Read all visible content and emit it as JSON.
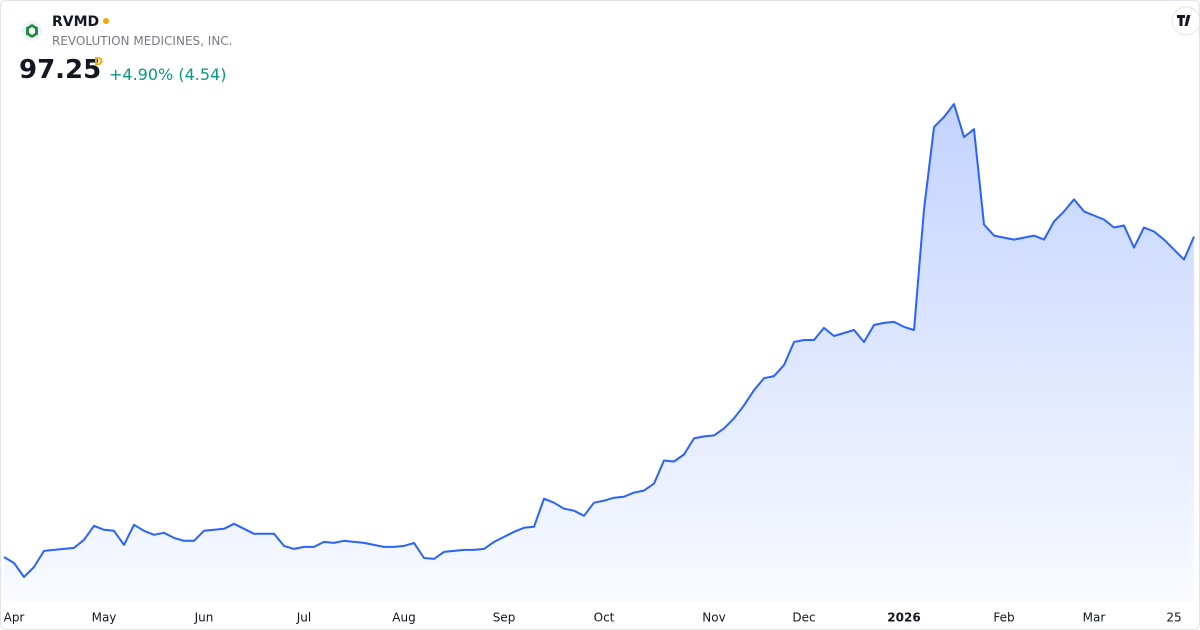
{
  "header": {
    "symbol": "RVMD",
    "name": "REVOLUTION MEDICINES, INC.",
    "price": "97.25",
    "resolution": "D",
    "change": "+4.90% (4.54)"
  },
  "chart_data": {
    "type": "area",
    "categories": [
      null,
      "Apr",
      null,
      null,
      null,
      null,
      null,
      null,
      null,
      null,
      "May",
      null,
      null,
      null,
      null,
      null,
      null,
      null,
      null,
      null,
      "Jun",
      null,
      null,
      null,
      null,
      null,
      null,
      null,
      null,
      null,
      "Jul",
      null,
      null,
      null,
      null,
      null,
      null,
      null,
      null,
      null,
      "Aug",
      null,
      null,
      null,
      null,
      null,
      null,
      null,
      null,
      null,
      "Sep",
      null,
      null,
      null,
      null,
      null,
      null,
      null,
      null,
      null,
      "Oct",
      null,
      null,
      null,
      null,
      null,
      null,
      null,
      null,
      null,
      null,
      "Nov",
      null,
      null,
      null,
      null,
      null,
      null,
      null,
      null,
      "Dec",
      null,
      null,
      null,
      null,
      null,
      null,
      null,
      null,
      null,
      "2026",
      null,
      null,
      null,
      null,
      null,
      null,
      null,
      null,
      null,
      "Feb",
      null,
      null,
      null,
      null,
      null,
      null,
      null,
      null,
      "Mar",
      null,
      null,
      null,
      null,
      null,
      null,
      null,
      "25",
      null,
      null
    ],
    "series": [
      {
        "color": "#2962ff",
        "values": [
          36.03,
          34.88,
          32.2,
          34.12,
          37.19,
          37.38,
          37.57,
          37.76,
          39.3,
          41.98,
          41.22,
          41.02,
          38.34,
          42.18,
          41.02,
          40.26,
          40.64,
          39.68,
          39.11,
          39.11,
          41.02,
          41.22,
          41.41,
          42.37,
          41.41,
          40.45,
          40.45,
          40.45,
          38.15,
          37.57,
          37.95,
          37.95,
          38.91,
          38.72,
          39.11,
          38.91,
          38.72,
          38.34,
          37.95,
          37.95,
          38.15,
          38.72,
          35.84,
          35.65,
          36.99,
          37.19,
          37.38,
          37.38,
          37.57,
          38.91,
          39.87,
          40.83,
          41.6,
          41.79,
          47.16,
          46.4,
          45.25,
          44.86,
          43.9,
          46.4,
          46.78,
          47.36,
          47.55,
          48.32,
          48.7,
          50.04,
          54.46,
          54.26,
          55.61,
          58.68,
          59.06,
          59.25,
          60.6,
          62.52,
          65.01,
          67.89,
          70.19,
          70.58,
          72.69,
          77.1,
          77.48,
          77.48,
          79.79,
          78.25,
          78.83,
          79.4,
          77.1,
          80.36,
          80.75,
          80.94,
          79.98,
          79.4,
          102.43,
          118.17,
          120.09,
          122.58,
          116.25,
          117.78,
          99.55,
          97.44,
          97.06,
          96.67,
          97.06,
          97.44,
          96.67,
          100.13,
          102.05,
          104.35,
          102.05,
          101.28,
          100.51,
          98.98,
          99.36,
          95.14,
          98.98,
          98.21,
          96.67,
          94.76,
          92.84,
          97.25
        ]
      }
    ],
    "bold_categories": [
      "2026"
    ]
  }
}
